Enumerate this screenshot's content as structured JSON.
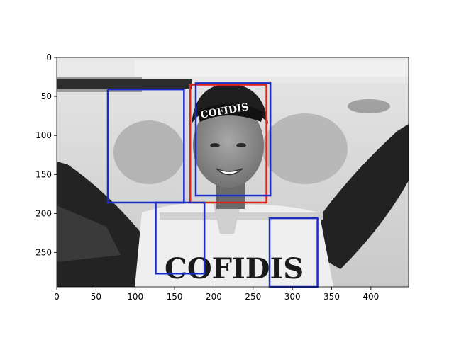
{
  "chart_data": {
    "type": "image",
    "image_size": [
      448,
      294
    ],
    "xlim": [
      0,
      448
    ],
    "ylim": [
      294,
      0
    ],
    "x_ticks": [
      0,
      50,
      100,
      150,
      200,
      250,
      300,
      350,
      400
    ],
    "y_ticks": [
      0,
      50,
      100,
      150,
      200,
      250
    ],
    "image_text": [
      "COFIDIS"
    ],
    "boxes": [
      {
        "x0": 170,
        "y0": 35,
        "x1": 267,
        "y1": 186,
        "color": "#e0241b"
      },
      {
        "x0": 177,
        "y0": 33,
        "x1": 272,
        "y1": 177,
        "color": "#1c2bc6"
      },
      {
        "x0": 65,
        "y0": 41,
        "x1": 162,
        "y1": 186,
        "color": "#1c2bc6"
      },
      {
        "x0": 126,
        "y0": 186,
        "x1": 188,
        "y1": 277,
        "color": "#1c2bc6"
      },
      {
        "x0": 271,
        "y0": 206,
        "x1": 332,
        "y1": 294,
        "color": "#1c2bc6"
      }
    ]
  }
}
